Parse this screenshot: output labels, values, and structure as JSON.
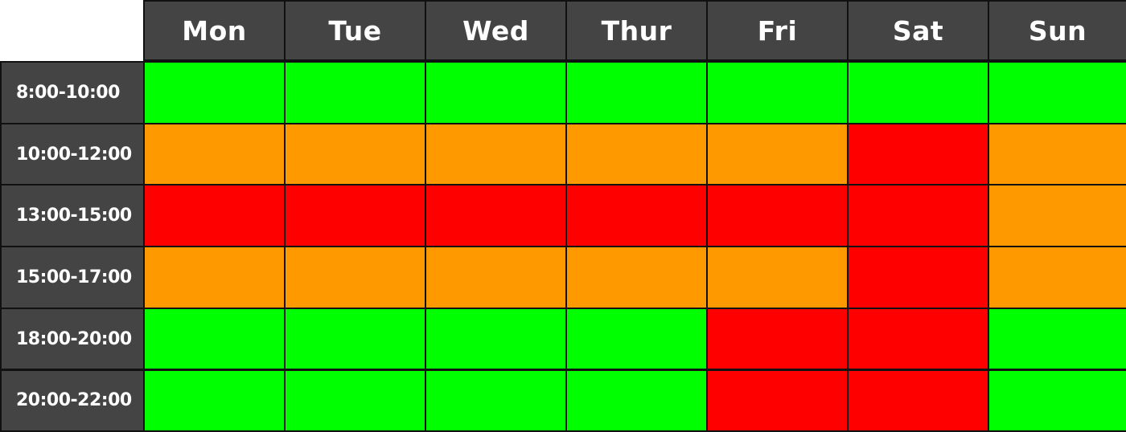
{
  "chart_data": {
    "type": "heatmap",
    "title": "",
    "xlabel": "",
    "ylabel": "",
    "columns": [
      "Mon",
      "Tue",
      "Wed",
      "Thur",
      "Fri",
      "Sat",
      "Sun"
    ],
    "rows": [
      "8:00-10:00",
      "10:00-12:00",
      "13:00-15:00",
      "15:00-17:00",
      "18:00-20:00",
      "20:00-22:00"
    ],
    "levels": {
      "green": "#00ff00",
      "orange": "#ff9900",
      "red": "#ff0000"
    },
    "values": [
      [
        "green",
        "green",
        "green",
        "green",
        "green",
        "green",
        "green"
      ],
      [
        "orange",
        "orange",
        "orange",
        "orange",
        "orange",
        "red",
        "orange"
      ],
      [
        "red",
        "red",
        "red",
        "red",
        "red",
        "red",
        "orange"
      ],
      [
        "orange",
        "orange",
        "orange",
        "orange",
        "orange",
        "red",
        "orange"
      ],
      [
        "green",
        "green",
        "green",
        "green",
        "red",
        "red",
        "green"
      ],
      [
        "green",
        "green",
        "green",
        "green",
        "red",
        "red",
        "green"
      ]
    ],
    "header_color": "#444444",
    "grid_color": "#111111"
  }
}
